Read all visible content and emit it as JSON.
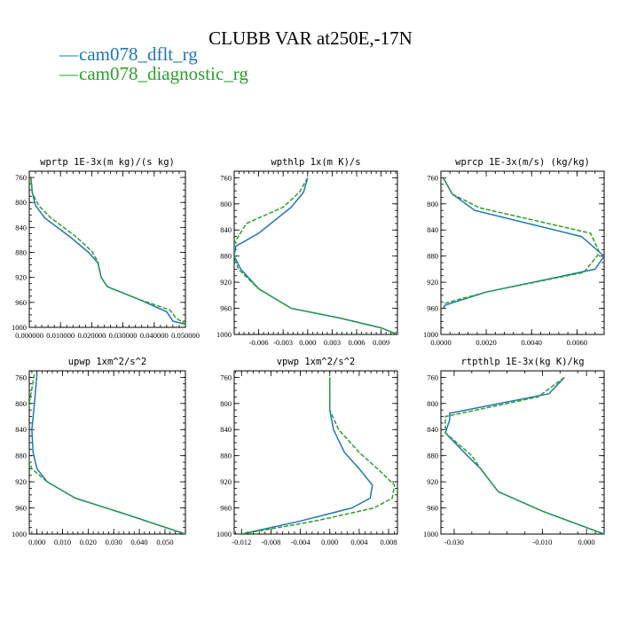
{
  "figure": {
    "title": "CLUBB VAR at250E,-17N",
    "legend": [
      {
        "label": "cam078_dflt_rg",
        "color": "#1f77b4",
        "dash": "solid",
        "symbol": "—"
      },
      {
        "label": "cam078_diagnostic_rg",
        "color": "#2ca02c",
        "dash": "dashed",
        "symbol": "—"
      }
    ]
  },
  "chart_data": [
    {
      "type": "line",
      "title": "wprtp  1E-3x(m kg)/(s kg)",
      "xlim": [
        0.0,
        0.05
      ],
      "ylim": [
        1000,
        750
      ],
      "xticks": [
        0.0,
        0.01,
        0.02,
        0.03,
        0.04,
        0.05
      ],
      "xticklabels": [
        "0.000000",
        "0.010000",
        "0.020000",
        "0.030000",
        "0.040000",
        "0.050000"
      ],
      "yticks": [
        760,
        800,
        840,
        880,
        920,
        960,
        1000
      ],
      "yticklabels": [
        "760",
        "800",
        "840",
        "880",
        "920",
        "960",
        "1000"
      ],
      "series": [
        {
          "name": "cam078_dflt_rg",
          "x": [
            0.0005,
            0.001,
            0.002,
            0.005,
            0.013,
            0.019,
            0.022,
            0.023,
            0.025,
            0.035,
            0.044,
            0.046,
            0.05
          ],
          "y": [
            760,
            785,
            805,
            825,
            855,
            880,
            897,
            920,
            935,
            955,
            975,
            990,
            995
          ]
        },
        {
          "name": "cam078_diagnostic_rg",
          "x": [
            0.0005,
            0.001,
            0.003,
            0.007,
            0.015,
            0.02,
            0.022,
            0.023,
            0.025,
            0.035,
            0.045,
            0.047,
            0.05
          ],
          "y": [
            760,
            785,
            805,
            825,
            855,
            878,
            895,
            920,
            935,
            955,
            972,
            985,
            995
          ]
        }
      ]
    },
    {
      "type": "line",
      "title": "wpthlp  1x(m K)/s",
      "xlim": [
        -0.009,
        0.011
      ],
      "ylim": [
        1000,
        750
      ],
      "xticks": [
        -0.006,
        -0.003,
        0.0,
        0.003,
        0.006,
        0.009
      ],
      "xticklabels": [
        "-0.006",
        "-0.003",
        "0.000",
        "0.003",
        "0.006",
        "0.009"
      ],
      "yticks": [
        760,
        800,
        840,
        880,
        920,
        960,
        1000
      ],
      "yticklabels": [
        "760",
        "800",
        "840",
        "880",
        "920",
        "960",
        "1000"
      ],
      "series": [
        {
          "name": "cam078_dflt_rg",
          "x": [
            0.0,
            -0.0005,
            -0.002,
            -0.006,
            -0.0088,
            -0.009,
            -0.0082,
            -0.006,
            -0.002,
            0.004,
            0.009,
            0.011
          ],
          "y": [
            760,
            782,
            805,
            845,
            865,
            880,
            900,
            930,
            960,
            975,
            990,
            1000
          ]
        },
        {
          "name": "cam078_diagnostic_rg",
          "x": [
            0.0,
            -0.001,
            -0.003,
            -0.0075,
            -0.009,
            -0.009,
            -0.0085,
            -0.006,
            -0.002,
            0.004,
            0.009,
            0.011
          ],
          "y": [
            760,
            782,
            805,
            830,
            860,
            880,
            900,
            930,
            960,
            975,
            990,
            1000
          ]
        }
      ]
    },
    {
      "type": "line",
      "title": "wprcp  1E-3x(m/s) (kg/kg)",
      "xlim": [
        0.0,
        0.0072
      ],
      "ylim": [
        1000,
        750
      ],
      "xticks": [
        0.0,
        0.002,
        0.004,
        0.006
      ],
      "xticklabels": [
        "0.0000",
        "0.0020",
        "0.0040",
        "0.0060"
      ],
      "yticks": [
        760,
        800,
        840,
        880,
        920,
        960,
        1000
      ],
      "yticklabels": [
        "760",
        "800",
        "840",
        "880",
        "920",
        "960",
        "1000"
      ],
      "series": [
        {
          "name": "cam078_dflt_rg",
          "x": [
            0.0001,
            0.0005,
            0.0015,
            0.0062,
            0.0072,
            0.0068,
            0.002,
            0.0002,
            0.0001
          ],
          "y": [
            760,
            785,
            810,
            850,
            880,
            900,
            935,
            955,
            960
          ]
        },
        {
          "name": "cam078_diagnostic_rg",
          "x": [
            0.0001,
            0.0005,
            0.0017,
            0.0066,
            0.007,
            0.0063,
            0.002,
            0.0002,
            0.0001
          ],
          "y": [
            760,
            785,
            806,
            845,
            875,
            905,
            935,
            952,
            960
          ]
        }
      ]
    },
    {
      "type": "line",
      "title": "upwp  1xm^2/s^2",
      "xlim": [
        -0.003,
        0.058
      ],
      "ylim": [
        1000,
        750
      ],
      "xticks": [
        0.0,
        0.01,
        0.02,
        0.03,
        0.04,
        0.05
      ],
      "xticklabels": [
        "0.000",
        "0.010",
        "0.020",
        "0.030",
        "0.040",
        "0.050"
      ],
      "yticks": [
        760,
        800,
        840,
        880,
        920,
        960,
        1000
      ],
      "yticklabels": [
        "760",
        "800",
        "840",
        "880",
        "920",
        "960",
        "1000"
      ],
      "series": [
        {
          "name": "cam078_dflt_rg",
          "x": [
            0.0,
            -0.001,
            -0.002,
            -0.0015,
            0.0,
            0.004,
            0.015,
            0.035,
            0.058
          ],
          "y": [
            755,
            800,
            840,
            875,
            900,
            920,
            945,
            970,
            1000
          ]
        },
        {
          "name": "cam078_diagnostic_rg",
          "x": [
            -0.001,
            -0.003,
            -0.0045,
            -0.0045,
            -0.002,
            0.004,
            0.015,
            0.035,
            0.058
          ],
          "y": [
            755,
            800,
            840,
            875,
            900,
            920,
            945,
            970,
            1000
          ]
        }
      ]
    },
    {
      "type": "line",
      "title": "vpwp  1xm^2/s^2",
      "xlim": [
        -0.013,
        0.0092
      ],
      "ylim": [
        1000,
        750
      ],
      "xticks": [
        -0.012,
        -0.008,
        -0.004,
        0.0,
        0.004,
        0.008
      ],
      "xticklabels": [
        "-0.012",
        "-0.008",
        "-0.004",
        "0.000",
        "0.004",
        "0.008"
      ],
      "yticks": [
        760,
        800,
        840,
        880,
        920,
        960,
        1000
      ],
      "yticklabels": [
        "760",
        "800",
        "840",
        "880",
        "920",
        "960",
        "1000"
      ],
      "series": [
        {
          "name": "cam078_dflt_rg",
          "x": [
            0.0,
            0.0,
            0.0005,
            0.002,
            0.004,
            0.0058,
            0.0055,
            0.003,
            -0.004,
            -0.012
          ],
          "y": [
            760,
            810,
            840,
            875,
            900,
            925,
            945,
            960,
            980,
            1000
          ]
        },
        {
          "name": "cam078_diagnostic_rg",
          "x": [
            0.0,
            0.0,
            0.0012,
            0.004,
            0.0065,
            0.0088,
            0.0085,
            0.006,
            -0.002,
            -0.012
          ],
          "y": [
            760,
            810,
            840,
            875,
            900,
            925,
            945,
            960,
            980,
            1000
          ]
        }
      ]
    },
    {
      "type": "line",
      "title": "rtpthlp  1E-3x(kg K)/kg",
      "xlim": [
        -0.033,
        0.004
      ],
      "ylim": [
        1000,
        750
      ],
      "xticks": [
        -0.03,
        -0.01,
        0.0
      ],
      "xticklabels": [
        "-0.030",
        "-0.010",
        "0.000"
      ],
      "yticks": [
        760,
        800,
        840,
        880,
        920,
        960,
        1000
      ],
      "yticklabels": [
        "760",
        "800",
        "840",
        "880",
        "920",
        "960",
        "1000"
      ],
      "series": [
        {
          "name": "cam078_dflt_rg",
          "x": [
            -0.005,
            -0.0085,
            -0.031,
            -0.031,
            -0.032,
            -0.027,
            -0.024,
            -0.02,
            -0.01,
            0.004
          ],
          "y": [
            760,
            785,
            815,
            825,
            845,
            880,
            900,
            935,
            965,
            1000
          ]
        },
        {
          "name": "cam078_diagnostic_rg",
          "x": [
            -0.005,
            -0.011,
            -0.025,
            -0.032,
            -0.032,
            -0.026,
            -0.024,
            -0.02,
            -0.01,
            0.004
          ],
          "y": [
            760,
            790,
            810,
            820,
            845,
            880,
            900,
            935,
            965,
            1000
          ]
        }
      ]
    }
  ]
}
